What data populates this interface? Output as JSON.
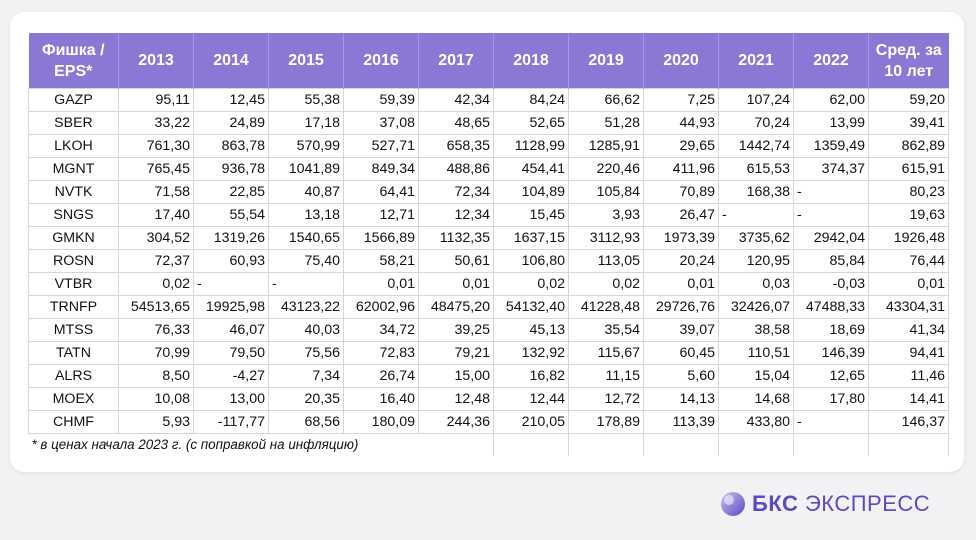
{
  "table": {
    "headers": [
      "Фишка / EPS*",
      "2013",
      "2014",
      "2015",
      "2016",
      "2017",
      "2018",
      "2019",
      "2020",
      "2021",
      "2022",
      "Сред. за 10 лет"
    ],
    "rows": [
      {
        "ticker": "GAZP",
        "values": [
          "95,11",
          "12,45",
          "55,38",
          "59,39",
          "42,34",
          "84,24",
          "66,62",
          "7,25",
          "107,24",
          "62,00",
          "59,20"
        ]
      },
      {
        "ticker": "SBER",
        "values": [
          "33,22",
          "24,89",
          "17,18",
          "37,08",
          "48,65",
          "52,65",
          "51,28",
          "44,93",
          "70,24",
          "13,99",
          "39,41"
        ]
      },
      {
        "ticker": "LKOH",
        "values": [
          "761,30",
          "863,78",
          "570,99",
          "527,71",
          "658,35",
          "1128,99",
          "1285,91",
          "29,65",
          "1442,74",
          "1359,49",
          "862,89"
        ]
      },
      {
        "ticker": "MGNT",
        "values": [
          "765,45",
          "936,78",
          "1041,89",
          "849,34",
          "488,86",
          "454,41",
          "220,46",
          "411,96",
          "615,53",
          "374,37",
          "615,91"
        ]
      },
      {
        "ticker": "NVTK",
        "values": [
          "71,58",
          "22,85",
          "40,87",
          "64,41",
          "72,34",
          "104,89",
          "105,84",
          "70,89",
          "168,38",
          "-",
          "80,23"
        ]
      },
      {
        "ticker": "SNGS",
        "values": [
          "17,40",
          "55,54",
          "13,18",
          "12,71",
          "12,34",
          "15,45",
          "3,93",
          "26,47",
          "-",
          "-",
          "19,63"
        ]
      },
      {
        "ticker": "GMKN",
        "values": [
          "304,52",
          "1319,26",
          "1540,65",
          "1566,89",
          "1132,35",
          "1637,15",
          "3112,93",
          "1973,39",
          "3735,62",
          "2942,04",
          "1926,48"
        ]
      },
      {
        "ticker": "ROSN",
        "values": [
          "72,37",
          "60,93",
          "75,40",
          "58,21",
          "50,61",
          "106,80",
          "113,05",
          "20,24",
          "120,95",
          "85,84",
          "76,44"
        ]
      },
      {
        "ticker": "VTBR",
        "values": [
          "0,02",
          "-",
          "-",
          "0,01",
          "0,01",
          "0,02",
          "0,02",
          "0,01",
          "0,03",
          "-0,03",
          "0,01"
        ]
      },
      {
        "ticker": "TRNFP",
        "values": [
          "54513,65",
          "19925,98",
          "43123,22",
          "62002,96",
          "48475,20",
          "54132,40",
          "41228,48",
          "29726,76",
          "32426,07",
          "47488,33",
          "43304,31"
        ]
      },
      {
        "ticker": "MTSS",
        "values": [
          "76,33",
          "46,07",
          "40,03",
          "34,72",
          "39,25",
          "45,13",
          "35,54",
          "39,07",
          "38,58",
          "18,69",
          "41,34"
        ]
      },
      {
        "ticker": "TATN",
        "values": [
          "70,99",
          "79,50",
          "75,56",
          "72,83",
          "79,21",
          "132,92",
          "115,67",
          "60,45",
          "110,51",
          "146,39",
          "94,41"
        ]
      },
      {
        "ticker": "ALRS",
        "values": [
          "8,50",
          "-4,27",
          "7,34",
          "26,74",
          "15,00",
          "16,82",
          "11,15",
          "5,60",
          "15,04",
          "12,65",
          "11,46"
        ]
      },
      {
        "ticker": "MOEX",
        "values": [
          "10,08",
          "13,00",
          "20,35",
          "16,40",
          "12,48",
          "12,44",
          "12,72",
          "14,13",
          "14,68",
          "17,80",
          "14,41"
        ]
      },
      {
        "ticker": "CHMF",
        "values": [
          "5,93",
          "-117,77",
          "68,56",
          "180,09",
          "244,36",
          "210,05",
          "178,89",
          "113,39",
          "433,80",
          "-",
          "146,37"
        ]
      }
    ],
    "footnote": "* в ценах начала 2023 г. (с поправкой на инфляцию)"
  },
  "brand": {
    "bold": "БКС",
    "regular": "ЭКСПРЕСС"
  },
  "colors": {
    "header_bg": "#8b78d4",
    "brand": "#5b4bbf"
  }
}
